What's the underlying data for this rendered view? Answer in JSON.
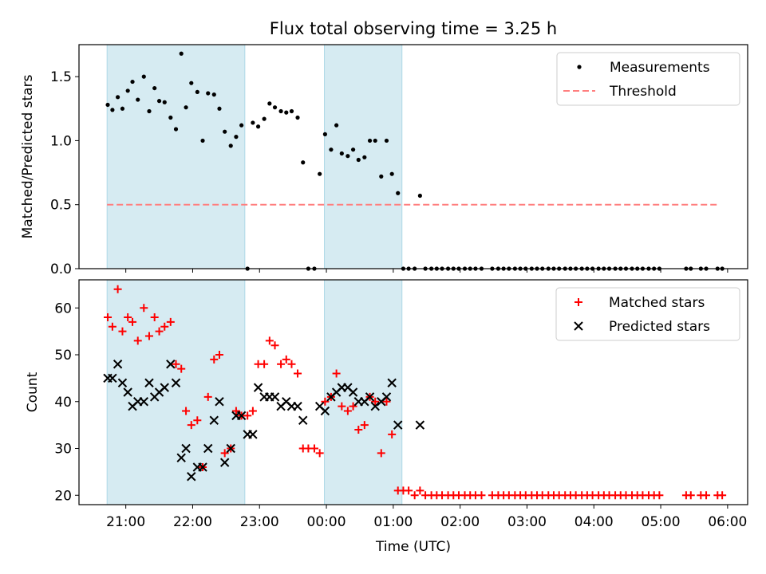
{
  "figure": {
    "title": "Flux total observing time = 3.25 h"
  },
  "colors": {
    "span": "#add8e6",
    "points": "#000000",
    "threshold": "#ff7f7f",
    "matched": "#ff0000",
    "predicted": "#000000"
  },
  "chart_data": [
    {
      "type": "scatter",
      "title": "Flux total observing time = 3.25 h",
      "xlabel": "",
      "ylabel": "Matched/Predicted stars",
      "xlim_hours": [
        20.3,
        30.3
      ],
      "ylim": [
        0,
        1.75
      ],
      "yticks": [
        0.0,
        0.5,
        1.0,
        1.5
      ],
      "ytick_labels": [
        "0.0",
        "0.5",
        "1.0",
        "1.5"
      ],
      "shaded_spans_hours": [
        [
          20.72,
          22.78
        ],
        [
          23.97,
          25.13
        ]
      ],
      "legend": {
        "position": "top-right",
        "entries": [
          {
            "label": "Measurements",
            "kind": "dot"
          },
          {
            "label": "Threshold",
            "kind": "dash"
          }
        ]
      },
      "threshold": {
        "value": 0.5,
        "x_range_hours": [
          20.72,
          29.85
        ]
      },
      "series": [
        {
          "name": "Measurements",
          "x_hours": [
            20.73,
            20.8,
            20.88,
            20.95,
            21.03,
            21.1,
            21.18,
            21.27,
            21.35,
            21.43,
            21.5,
            21.58,
            21.67,
            21.75,
            21.83,
            21.9,
            21.98,
            22.07,
            22.15,
            22.23,
            22.32,
            22.4,
            22.48,
            22.57,
            22.65,
            22.73,
            22.82,
            22.9,
            22.98,
            23.07,
            23.15,
            23.23,
            23.32,
            23.4,
            23.48,
            23.57,
            23.65,
            23.73,
            23.82,
            23.9,
            23.98,
            24.07,
            24.15,
            24.23,
            24.32,
            24.4,
            24.48,
            24.57,
            24.65,
            24.73,
            24.82,
            24.9,
            24.98,
            25.07,
            25.15,
            25.23,
            25.32,
            25.4,
            25.48,
            25.57,
            25.65,
            25.73,
            25.82,
            25.9,
            25.98,
            26.07,
            26.15,
            26.23,
            26.32,
            26.48,
            26.57,
            26.65,
            26.73,
            26.82,
            26.9,
            26.98,
            27.07,
            27.15,
            27.23,
            27.32,
            27.4,
            27.48,
            27.57,
            27.65,
            27.73,
            27.82,
            27.9,
            27.98,
            28.07,
            28.15,
            28.23,
            28.32,
            28.4,
            28.48,
            28.57,
            28.65,
            28.73,
            28.82,
            28.9,
            28.98,
            29.38,
            29.45,
            29.6,
            29.68,
            29.85,
            29.92
          ],
          "y": [
            1.28,
            1.24,
            1.34,
            1.25,
            1.39,
            1.46,
            1.32,
            1.5,
            1.23,
            1.41,
            1.31,
            1.3,
            1.18,
            1.09,
            1.68,
            1.26,
            1.45,
            1.38,
            1.0,
            1.37,
            1.36,
            1.25,
            1.07,
            0.96,
            1.03,
            1.12,
            0.0,
            1.14,
            1.11,
            1.17,
            1.29,
            1.26,
            1.23,
            1.22,
            1.23,
            1.18,
            0.83,
            0.0,
            0.0,
            0.74,
            1.05,
            0.93,
            1.12,
            0.9,
            0.88,
            0.93,
            0.85,
            0.87,
            1.0,
            1.0,
            0.72,
            1.0,
            0.74,
            0.59,
            0.0,
            0.0,
            0.0,
            0.57,
            0.0,
            0.0,
            0.0,
            0.0,
            0.0,
            0.0,
            0.0,
            0.0,
            0.0,
            0.0,
            0.0,
            0.0,
            0.0,
            0.0,
            0.0,
            0.0,
            0.0,
            0.0,
            0.0,
            0.0,
            0.0,
            0.0,
            0.0,
            0.0,
            0.0,
            0.0,
            0.0,
            0.0,
            0.0,
            0.0,
            0.0,
            0.0,
            0.0,
            0.0,
            0.0,
            0.0,
            0.0,
            0.0,
            0.0,
            0.0,
            0.0,
            0.0,
            0.0,
            0.0,
            0.0,
            0.0,
            0.0,
            0.0
          ]
        }
      ]
    },
    {
      "type": "scatter",
      "title": "",
      "xlabel": "Time (UTC)",
      "ylabel": "Count",
      "xlim_hours": [
        20.3,
        30.3
      ],
      "ylim": [
        18,
        66
      ],
      "yticks": [
        20,
        30,
        40,
        50,
        60
      ],
      "ytick_labels": [
        "20",
        "30",
        "40",
        "50",
        "60"
      ],
      "xticks_hours": [
        21,
        22,
        23,
        24,
        25,
        26,
        27,
        28,
        29,
        30
      ],
      "xtick_labels": [
        "21:00",
        "22:00",
        "23:00",
        "00:00",
        "01:00",
        "02:00",
        "03:00",
        "04:00",
        "05:00",
        "06:00"
      ],
      "shaded_spans_hours": [
        [
          20.72,
          22.78
        ],
        [
          23.97,
          25.13
        ]
      ],
      "legend": {
        "position": "top-right",
        "entries": [
          {
            "label": "Matched stars",
            "kind": "plus"
          },
          {
            "label": "Predicted stars",
            "kind": "x"
          }
        ]
      },
      "series": [
        {
          "name": "Matched stars",
          "x_hours": [
            20.73,
            20.8,
            20.88,
            20.95,
            21.03,
            21.1,
            21.18,
            21.27,
            21.35,
            21.43,
            21.5,
            21.58,
            21.67,
            21.75,
            21.83,
            21.9,
            21.98,
            22.07,
            22.15,
            22.23,
            22.32,
            22.4,
            22.48,
            22.57,
            22.65,
            22.73,
            22.82,
            22.9,
            22.98,
            23.07,
            23.15,
            23.23,
            23.32,
            23.4,
            23.48,
            23.57,
            23.65,
            23.73,
            23.82,
            23.9,
            23.98,
            24.07,
            24.15,
            24.23,
            24.32,
            24.4,
            24.48,
            24.57,
            24.65,
            24.73,
            24.82,
            24.9,
            24.98,
            25.07,
            25.15,
            25.23,
            25.32,
            25.4,
            25.48,
            25.57,
            25.65,
            25.73,
            25.82,
            25.9,
            25.98,
            26.07,
            26.15,
            26.23,
            26.32,
            26.48,
            26.57,
            26.65,
            26.73,
            26.82,
            26.9,
            26.98,
            27.07,
            27.15,
            27.23,
            27.32,
            27.4,
            27.48,
            27.57,
            27.65,
            27.73,
            27.82,
            27.9,
            27.98,
            28.07,
            28.15,
            28.23,
            28.32,
            28.4,
            28.48,
            28.57,
            28.65,
            28.73,
            28.82,
            28.9,
            28.98,
            29.38,
            29.45,
            29.6,
            29.68,
            29.85,
            29.92
          ],
          "y": [
            58,
            56,
            64,
            55,
            58,
            57,
            53,
            60,
            54,
            58,
            55,
            56,
            57,
            48,
            47,
            38,
            35,
            36,
            26,
            41,
            49,
            50,
            29,
            30,
            38,
            37,
            37,
            38,
            48,
            48,
            53,
            52,
            48,
            49,
            48,
            46,
            30,
            30,
            30,
            29,
            40,
            41,
            46,
            39,
            38,
            39,
            34,
            35,
            41,
            40,
            29,
            40,
            33,
            21,
            21,
            21,
            20,
            21,
            20,
            20,
            20,
            20,
            20,
            20,
            20,
            20,
            20,
            20,
            20,
            20,
            20,
            20,
            20,
            20,
            20,
            20,
            20,
            20,
            20,
            20,
            20,
            20,
            20,
            20,
            20,
            20,
            20,
            20,
            20,
            20,
            20,
            20,
            20,
            20,
            20,
            20,
            20,
            20,
            20,
            20,
            20,
            20,
            20,
            20,
            20,
            20
          ]
        },
        {
          "name": "Predicted stars",
          "x_hours": [
            20.73,
            20.8,
            20.88,
            20.95,
            21.03,
            21.1,
            21.18,
            21.27,
            21.35,
            21.43,
            21.5,
            21.58,
            21.67,
            21.75,
            21.83,
            21.9,
            21.98,
            22.07,
            22.15,
            22.23,
            22.32,
            22.4,
            22.48,
            22.57,
            22.65,
            22.73,
            22.82,
            22.9,
            22.98,
            23.07,
            23.15,
            23.23,
            23.32,
            23.4,
            23.48,
            23.57,
            23.65,
            23.73,
            23.82,
            23.9,
            23.98,
            24.07,
            24.15,
            24.23,
            24.32,
            24.4,
            24.48,
            24.57,
            24.65,
            24.73,
            24.82,
            24.9,
            24.98,
            25.07,
            25.15,
            25.23,
            25.32,
            25.4,
            25.48,
            25.57,
            25.65,
            25.73,
            25.82,
            25.9,
            25.98,
            26.07,
            26.15,
            26.23,
            26.32,
            26.48,
            26.57,
            26.65,
            26.73,
            26.82,
            26.9,
            26.98,
            27.07,
            27.15,
            27.23,
            27.32,
            27.4,
            27.48,
            27.57,
            27.65,
            27.73,
            27.82,
            27.9,
            27.98,
            28.07,
            28.15,
            28.23,
            28.32,
            28.4,
            28.48,
            28.57,
            28.65,
            28.73,
            28.82,
            28.9,
            28.98,
            29.38,
            29.45,
            29.6,
            29.68,
            29.85,
            29.92
          ],
          "y": [
            45,
            45,
            48,
            44,
            42,
            39,
            40,
            40,
            44,
            41,
            42,
            43,
            48,
            44,
            28,
            30,
            24,
            26,
            26,
            30,
            36,
            40,
            27,
            30,
            37,
            37,
            33,
            33,
            43,
            41,
            41,
            41,
            39,
            40,
            39,
            39,
            36,
            null,
            null,
            39,
            38,
            41,
            42,
            43,
            43,
            42,
            40,
            40,
            41,
            39,
            40,
            41,
            44,
            35,
            null,
            null,
            null,
            35,
            null,
            null,
            null,
            null,
            null,
            null,
            null,
            null,
            null,
            null,
            null,
            null,
            null,
            null,
            null,
            null,
            null,
            null,
            null,
            null,
            null,
            null,
            null,
            null,
            null,
            null,
            null,
            null,
            null,
            null,
            null,
            null,
            null,
            null,
            null,
            null,
            null,
            null,
            null,
            null,
            null,
            null,
            null,
            null,
            null,
            null,
            null,
            null
          ]
        }
      ]
    }
  ]
}
